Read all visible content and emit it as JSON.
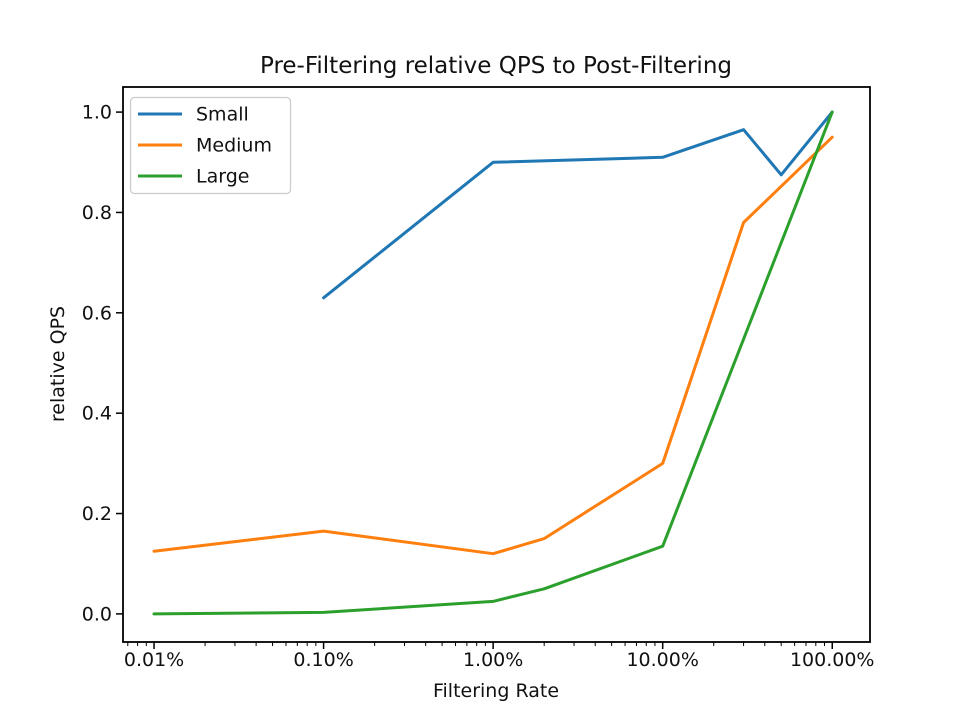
{
  "chart_data": {
    "type": "line",
    "title": "Pre-Filtering relative QPS to Post-Filtering",
    "xlabel": "Filtering Rate",
    "ylabel": "relative QPS",
    "x_scale": "log",
    "x_unit": "percent",
    "xlim_pct": [
      0.00656,
      167
    ],
    "ylim": [
      -0.056,
      1.05
    ],
    "grid": false,
    "legend_position": "upper left",
    "axis_color": "#000000",
    "x_ticks": [
      {
        "value": 0.01,
        "label": "0.01%"
      },
      {
        "value": 0.1,
        "label": "0.10%"
      },
      {
        "value": 1,
        "label": "1.00%"
      },
      {
        "value": 10,
        "label": "10.00%"
      },
      {
        "value": 100,
        "label": "100.00%"
      }
    ],
    "y_ticks": [
      {
        "value": 0.0,
        "label": "0.0"
      },
      {
        "value": 0.2,
        "label": "0.2"
      },
      {
        "value": 0.4,
        "label": "0.4"
      },
      {
        "value": 0.6,
        "label": "0.6"
      },
      {
        "value": 0.8,
        "label": "0.8"
      },
      {
        "value": 1.0,
        "label": "1.0"
      }
    ],
    "series": [
      {
        "name": "Small",
        "color": "#1f77b4",
        "points": [
          [
            0.1,
            0.63
          ],
          [
            1,
            0.9
          ],
          [
            10,
            0.91
          ],
          [
            30,
            0.965
          ],
          [
            50,
            0.875
          ],
          [
            100,
            1.0
          ]
        ]
      },
      {
        "name": "Medium",
        "color": "#ff7f0e",
        "points": [
          [
            0.01,
            0.125
          ],
          [
            0.1,
            0.165
          ],
          [
            1,
            0.12
          ],
          [
            2,
            0.15
          ],
          [
            10,
            0.3
          ],
          [
            30,
            0.78
          ],
          [
            100,
            0.95
          ]
        ]
      },
      {
        "name": "Large",
        "color": "#2ca02c",
        "points": [
          [
            0.01,
            0.0
          ],
          [
            0.1,
            0.003
          ],
          [
            1,
            0.025
          ],
          [
            2,
            0.05
          ],
          [
            10,
            0.135
          ],
          [
            100,
            1.0
          ]
        ]
      }
    ]
  }
}
